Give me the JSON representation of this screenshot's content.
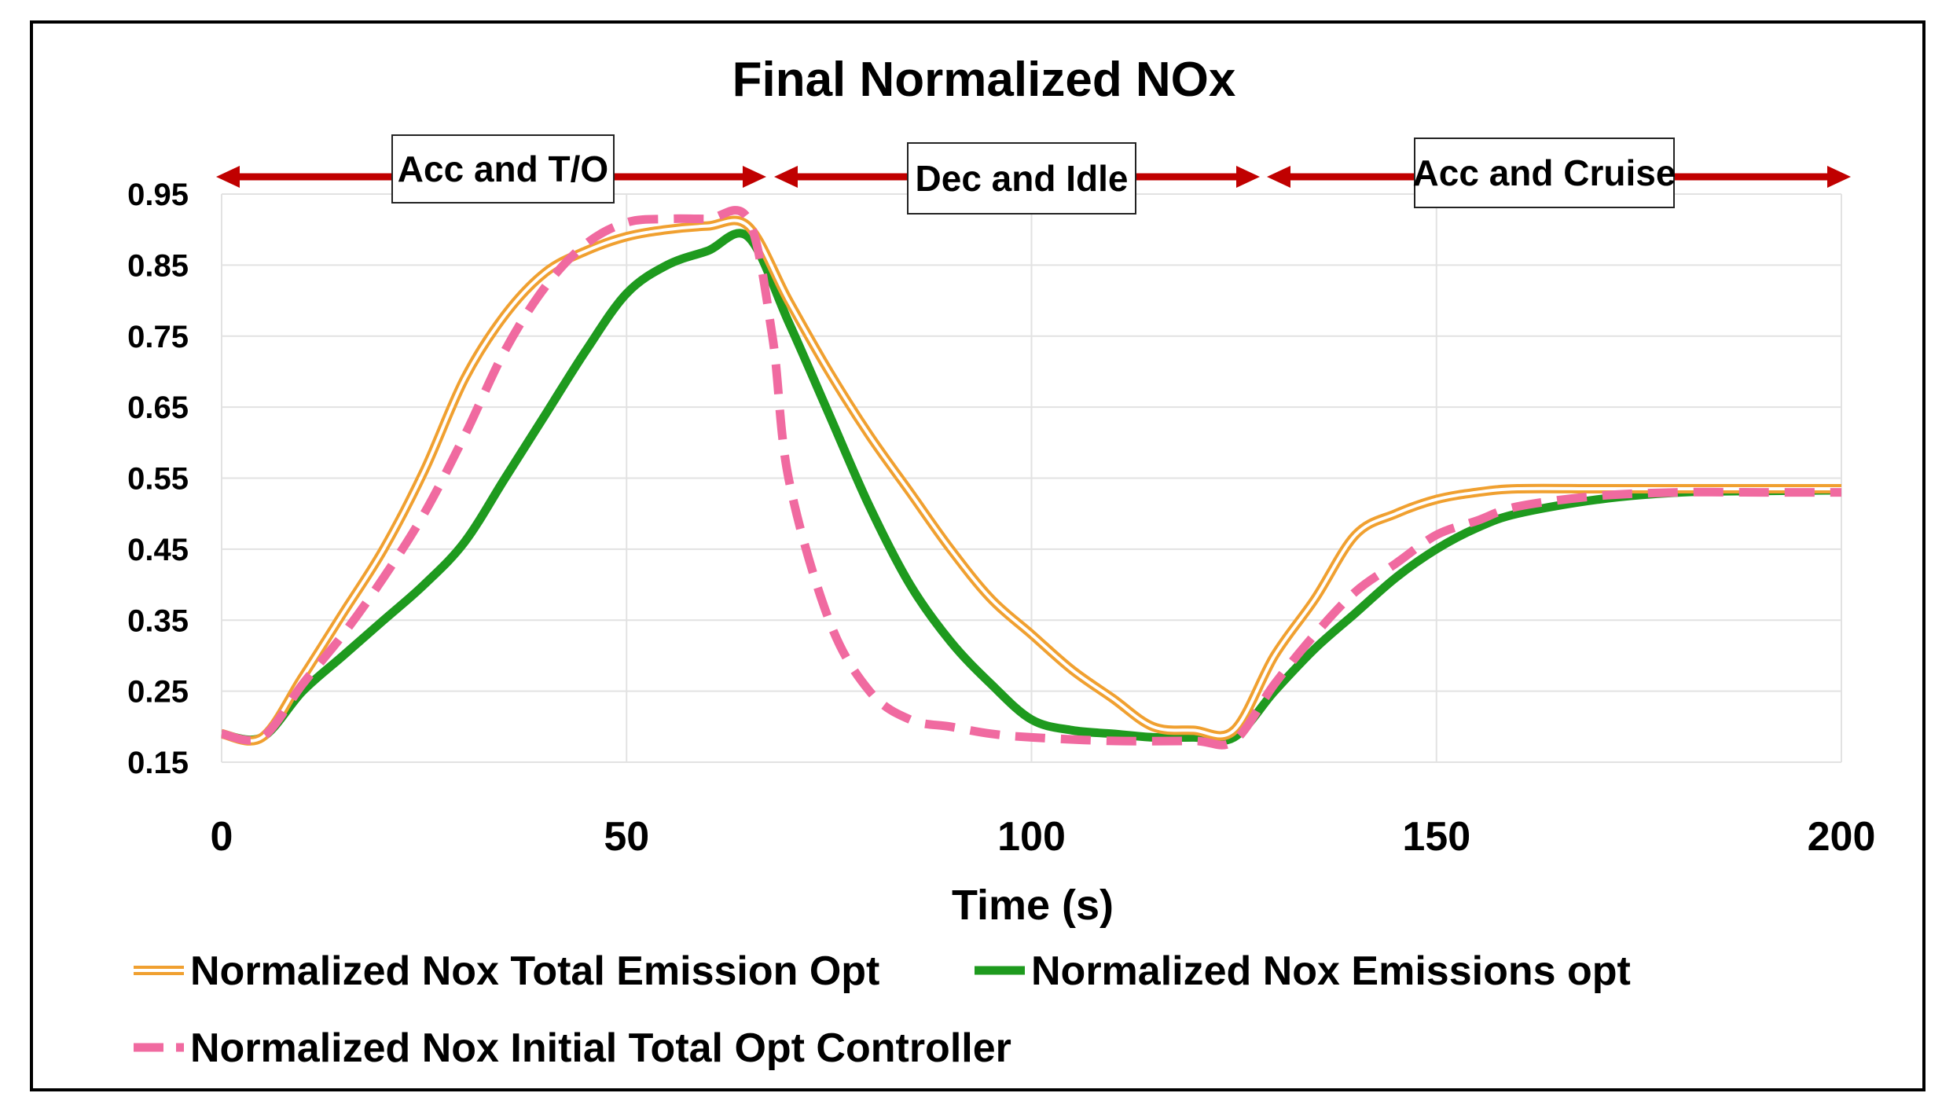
{
  "chart_data": {
    "type": "line",
    "title": "Final Normalized NOx",
    "xlabel": "Time (s)",
    "ylabel": "",
    "xlim": [
      0,
      200
    ],
    "ylim": [
      0.15,
      0.95
    ],
    "x_ticks": [
      0,
      50,
      100,
      150,
      200
    ],
    "y_ticks": [
      0.15,
      0.25,
      0.35,
      0.45,
      0.55,
      0.65,
      0.75,
      0.85,
      0.95
    ],
    "y_tick_labels": [
      "0.15",
      "0.25",
      "0.35",
      "0.45",
      "0.55",
      "0.65",
      "0.75",
      "0.85",
      "0.95"
    ],
    "grid": true,
    "phases": [
      {
        "label": "Acc and T/O",
        "start": 0,
        "end": 68
      },
      {
        "label": "Dec and Idle",
        "start": 68,
        "end": 129
      },
      {
        "label": "Acc and Cruise",
        "start": 129,
        "end": 200
      }
    ],
    "series": [
      {
        "name": "Normalized Nox Total Emission Opt",
        "color": "#f0a030",
        "style": "double",
        "x": [
          0,
          5,
          10,
          15,
          20,
          25,
          30,
          35,
          40,
          45,
          50,
          55,
          60,
          65,
          70,
          75,
          80,
          85,
          90,
          95,
          100,
          105,
          110,
          115,
          120,
          125,
          130,
          135,
          140,
          145,
          150,
          155,
          160,
          170,
          180,
          190,
          200
        ],
        "y": [
          0.19,
          0.185,
          0.27,
          0.36,
          0.45,
          0.56,
          0.69,
          0.78,
          0.84,
          0.87,
          0.89,
          0.9,
          0.905,
          0.905,
          0.8,
          0.7,
          0.61,
          0.53,
          0.45,
          0.38,
          0.33,
          0.28,
          0.24,
          0.2,
          0.195,
          0.195,
          0.3,
          0.38,
          0.47,
          0.5,
          0.52,
          0.53,
          0.535,
          0.535,
          0.535,
          0.535,
          0.535
        ]
      },
      {
        "name": "Normalized Nox Emissions opt",
        "color": "#1e9a1e",
        "style": "solid",
        "x": [
          0,
          5,
          10,
          15,
          20,
          25,
          30,
          35,
          40,
          45,
          50,
          55,
          60,
          65,
          70,
          75,
          80,
          85,
          90,
          95,
          100,
          105,
          110,
          115,
          120,
          125,
          130,
          135,
          140,
          145,
          150,
          155,
          160,
          170,
          180,
          190,
          200
        ],
        "y": [
          0.19,
          0.185,
          0.25,
          0.3,
          0.35,
          0.4,
          0.46,
          0.55,
          0.64,
          0.73,
          0.81,
          0.85,
          0.87,
          0.89,
          0.77,
          0.64,
          0.51,
          0.4,
          0.32,
          0.26,
          0.21,
          0.195,
          0.19,
          0.185,
          0.185,
          0.185,
          0.25,
          0.31,
          0.36,
          0.41,
          0.45,
          0.48,
          0.5,
          0.52,
          0.53,
          0.532,
          0.533
        ]
      },
      {
        "name": "Normalized Nox Initial Total Opt Controller",
        "color": "#f06aa0",
        "style": "dashed",
        "x": [
          0,
          5,
          10,
          15,
          20,
          25,
          30,
          35,
          40,
          45,
          50,
          55,
          60,
          65,
          68,
          70,
          75,
          80,
          85,
          90,
          95,
          100,
          110,
          120,
          125,
          130,
          135,
          140,
          145,
          150,
          155,
          160,
          170,
          180,
          190,
          200
        ],
        "y": [
          0.19,
          0.185,
          0.26,
          0.33,
          0.41,
          0.5,
          0.61,
          0.73,
          0.82,
          0.88,
          0.91,
          0.915,
          0.915,
          0.915,
          0.75,
          0.55,
          0.35,
          0.25,
          0.21,
          0.2,
          0.19,
          0.185,
          0.18,
          0.18,
          0.18,
          0.26,
          0.33,
          0.39,
          0.43,
          0.47,
          0.49,
          0.51,
          0.525,
          0.53,
          0.53,
          0.53
        ]
      }
    ]
  }
}
